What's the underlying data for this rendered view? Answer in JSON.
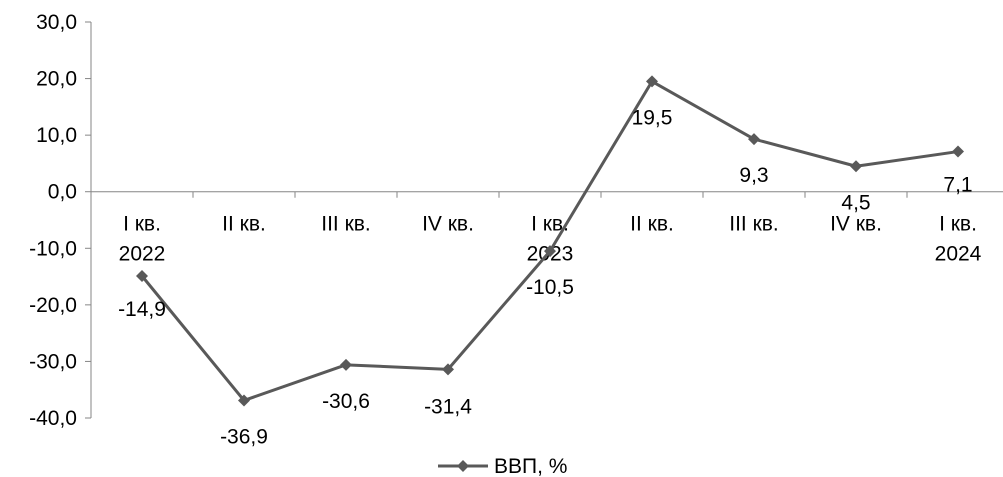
{
  "chart_data": {
    "type": "line",
    "title": "",
    "xlabel": "",
    "ylabel": "",
    "ylim": [
      -40,
      30
    ],
    "ytick_step": 10,
    "ytick_labels": [
      "30,0",
      "20,0",
      "10,0",
      "0,0",
      "-10,0",
      "-20,0",
      "-30,0",
      "-40,0"
    ],
    "grid": false,
    "legend_position": "bottom",
    "categories": [
      [
        "I кв.",
        "2022"
      ],
      [
        "II кв."
      ],
      [
        "III кв."
      ],
      [
        "IV кв."
      ],
      [
        "I кв.",
        "2023"
      ],
      [
        "II кв."
      ],
      [
        "III кв."
      ],
      [
        "IV кв."
      ],
      [
        "I кв.",
        "2024"
      ]
    ],
    "series": [
      {
        "name": "ВВП, %",
        "color": "#595959",
        "marker": "diamond",
        "values": [
          -14.9,
          -36.9,
          -30.6,
          -31.4,
          -10.5,
          19.5,
          9.3,
          4.5,
          7.1
        ],
        "value_labels": [
          "-14,9",
          "-36,9",
          "-30,6",
          "-31,4",
          "-10,5",
          "19,5",
          "9,3",
          "4,5",
          "7,1"
        ]
      }
    ]
  }
}
